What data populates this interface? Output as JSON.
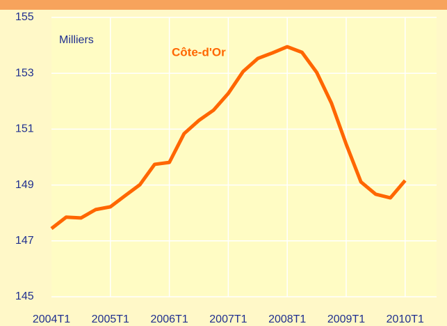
{
  "chart_data": {
    "type": "line",
    "annotations": [
      "Milliers",
      "Côte-d'Or"
    ],
    "categories": [
      "2004T1",
      null,
      null,
      null,
      "2005T1",
      null,
      null,
      null,
      "2006T1",
      null,
      null,
      null,
      "2007T1",
      null,
      null,
      null,
      "2008T1",
      null,
      null,
      null,
      "2009T1",
      null,
      null,
      null,
      "2010T1"
    ],
    "series": [
      {
        "name": "Côte-d'Or",
        "color": "#ff6600",
        "values": [
          147.44,
          147.85,
          147.82,
          148.12,
          148.22,
          148.62,
          149.01,
          149.74,
          149.81,
          150.84,
          151.31,
          151.68,
          152.28,
          153.06,
          153.53,
          153.73,
          153.95,
          153.75,
          153.03,
          151.93,
          150.46,
          149.11,
          148.67,
          148.54,
          149.16
        ]
      }
    ],
    "ylim": [
      145,
      155
    ],
    "yticks": [
      145,
      147,
      149,
      151,
      153,
      155
    ],
    "grid": true
  }
}
